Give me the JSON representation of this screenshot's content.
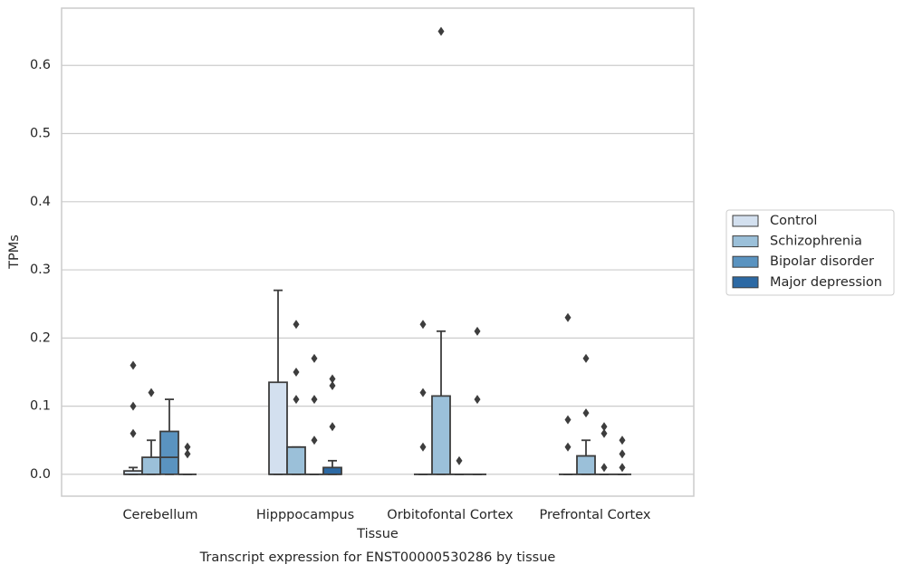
{
  "chart_data": {
    "type": "box",
    "title": "Transcript expression for ENST00000530286 by tissue",
    "x_label": "Tissue",
    "y_label": "TPMs",
    "categories": [
      "Cerebellum",
      "Hipppocampus",
      "Orbitofontal Cortex",
      "Prefrontal Cortex"
    ],
    "ylim": [
      -0.032,
      0.684
    ],
    "yticks": [
      {
        "value": 0,
        "label": "0.0"
      },
      0.1,
      0.2,
      0.3,
      0.4,
      0.5,
      0.6
    ],
    "grid": true,
    "legend_position": "right",
    "series": [
      {
        "name": "Control",
        "color": "#d3e0ef",
        "boxes": [
          {
            "min": 0,
            "q1": 0,
            "median": 0,
            "q3": 0.005,
            "max": 0.01,
            "outliers": [
              0.16,
              0.1,
              0.06
            ]
          },
          {
            "min": 0,
            "q1": 0,
            "median": 0,
            "q3": 0.135,
            "max": 0.27,
            "outliers": []
          },
          {
            "min": 0,
            "q1": 0,
            "median": 0,
            "q3": 0,
            "max": 0,
            "outliers": [
              0.22,
              0.12,
              0.04
            ]
          },
          {
            "min": 0,
            "q1": 0,
            "median": 0,
            "q3": 0,
            "max": 0,
            "outliers": [
              0.23,
              0.08,
              0.04
            ]
          }
        ]
      },
      {
        "name": "Schizophrenia",
        "color": "#9bc0d9",
        "boxes": [
          {
            "min": 0,
            "q1": 0,
            "median": 0,
            "q3": 0.025,
            "max": 0.05,
            "outliers": [
              0.12
            ]
          },
          {
            "min": 0,
            "q1": 0,
            "median": 0,
            "q3": 0.04,
            "max": 0.04,
            "outliers": [
              0.22,
              0.15,
              0.11
            ]
          },
          {
            "min": 0,
            "q1": 0,
            "median": 0,
            "q3": 0.115,
            "max": 0.21,
            "outliers": [
              0.65
            ]
          },
          {
            "min": 0,
            "q1": 0,
            "median": 0,
            "q3": 0.027,
            "max": 0.05,
            "outliers": [
              0.17,
              0.09
            ]
          }
        ]
      },
      {
        "name": "Bipolar disorder",
        "color": "#5a93c0",
        "boxes": [
          {
            "min": 0,
            "q1": 0,
            "median": 0.025,
            "q3": 0.063,
            "max": 0.11,
            "outliers": []
          },
          {
            "min": 0,
            "q1": 0,
            "median": 0,
            "q3": 0,
            "max": 0,
            "outliers": [
              0.17,
              0.11,
              0.05
            ]
          },
          {
            "min": 0,
            "q1": 0,
            "median": 0,
            "q3": 0,
            "max": 0,
            "outliers": [
              0.02
            ]
          },
          {
            "min": 0,
            "q1": 0,
            "median": 0,
            "q3": 0,
            "max": 0,
            "outliers": [
              0.07,
              0.06,
              0.01
            ]
          }
        ]
      },
      {
        "name": "Major depression",
        "color": "#2c69a4",
        "boxes": [
          {
            "min": 0,
            "q1": 0,
            "median": 0,
            "q3": 0,
            "max": 0,
            "outliers": [
              0.04,
              0.03
            ]
          },
          {
            "min": 0,
            "q1": 0,
            "median": 0,
            "q3": 0.01,
            "max": 0.02,
            "outliers": [
              0.14,
              0.13,
              0.07
            ]
          },
          {
            "min": 0,
            "q1": 0,
            "median": 0,
            "q3": 0,
            "max": 0,
            "outliers": [
              0.21,
              0.11
            ]
          },
          {
            "min": 0,
            "q1": 0,
            "median": 0,
            "q3": 0,
            "max": 0,
            "outliers": [
              0.05,
              0.03,
              0.01
            ]
          }
        ]
      }
    ]
  }
}
